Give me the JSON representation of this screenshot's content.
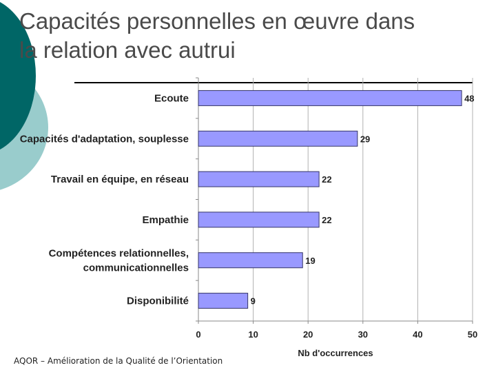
{
  "slide": {
    "title_line1": "Capacités personnelles en œuvre dans",
    "title_line2": "la relation avec autrui",
    "footer": "AQOR – Amélioration de la Qualité de l’Orientation"
  },
  "colors": {
    "bar_fill": "#9999ff",
    "bar_stroke": "#333366",
    "decor_dark": "#006666",
    "decor_light": "#99cccc"
  },
  "chart_data": {
    "type": "bar",
    "orientation": "horizontal",
    "categories": [
      [
        "Ecoute"
      ],
      [
        "Capacités d'adaptation, souplesse"
      ],
      [
        "Travail en équipe, en réseau"
      ],
      [
        "Empathie"
      ],
      [
        "Compétences relationnelles,",
        "communicationnelles"
      ],
      [
        "Disponibilité"
      ]
    ],
    "values": [
      48,
      29,
      22,
      22,
      19,
      9
    ],
    "xlabel": "Nb d'occurrences",
    "xlim": [
      0,
      50
    ],
    "xticks": [
      0,
      10,
      20,
      30,
      40,
      50
    ],
    "grid": true,
    "legend": "none"
  }
}
